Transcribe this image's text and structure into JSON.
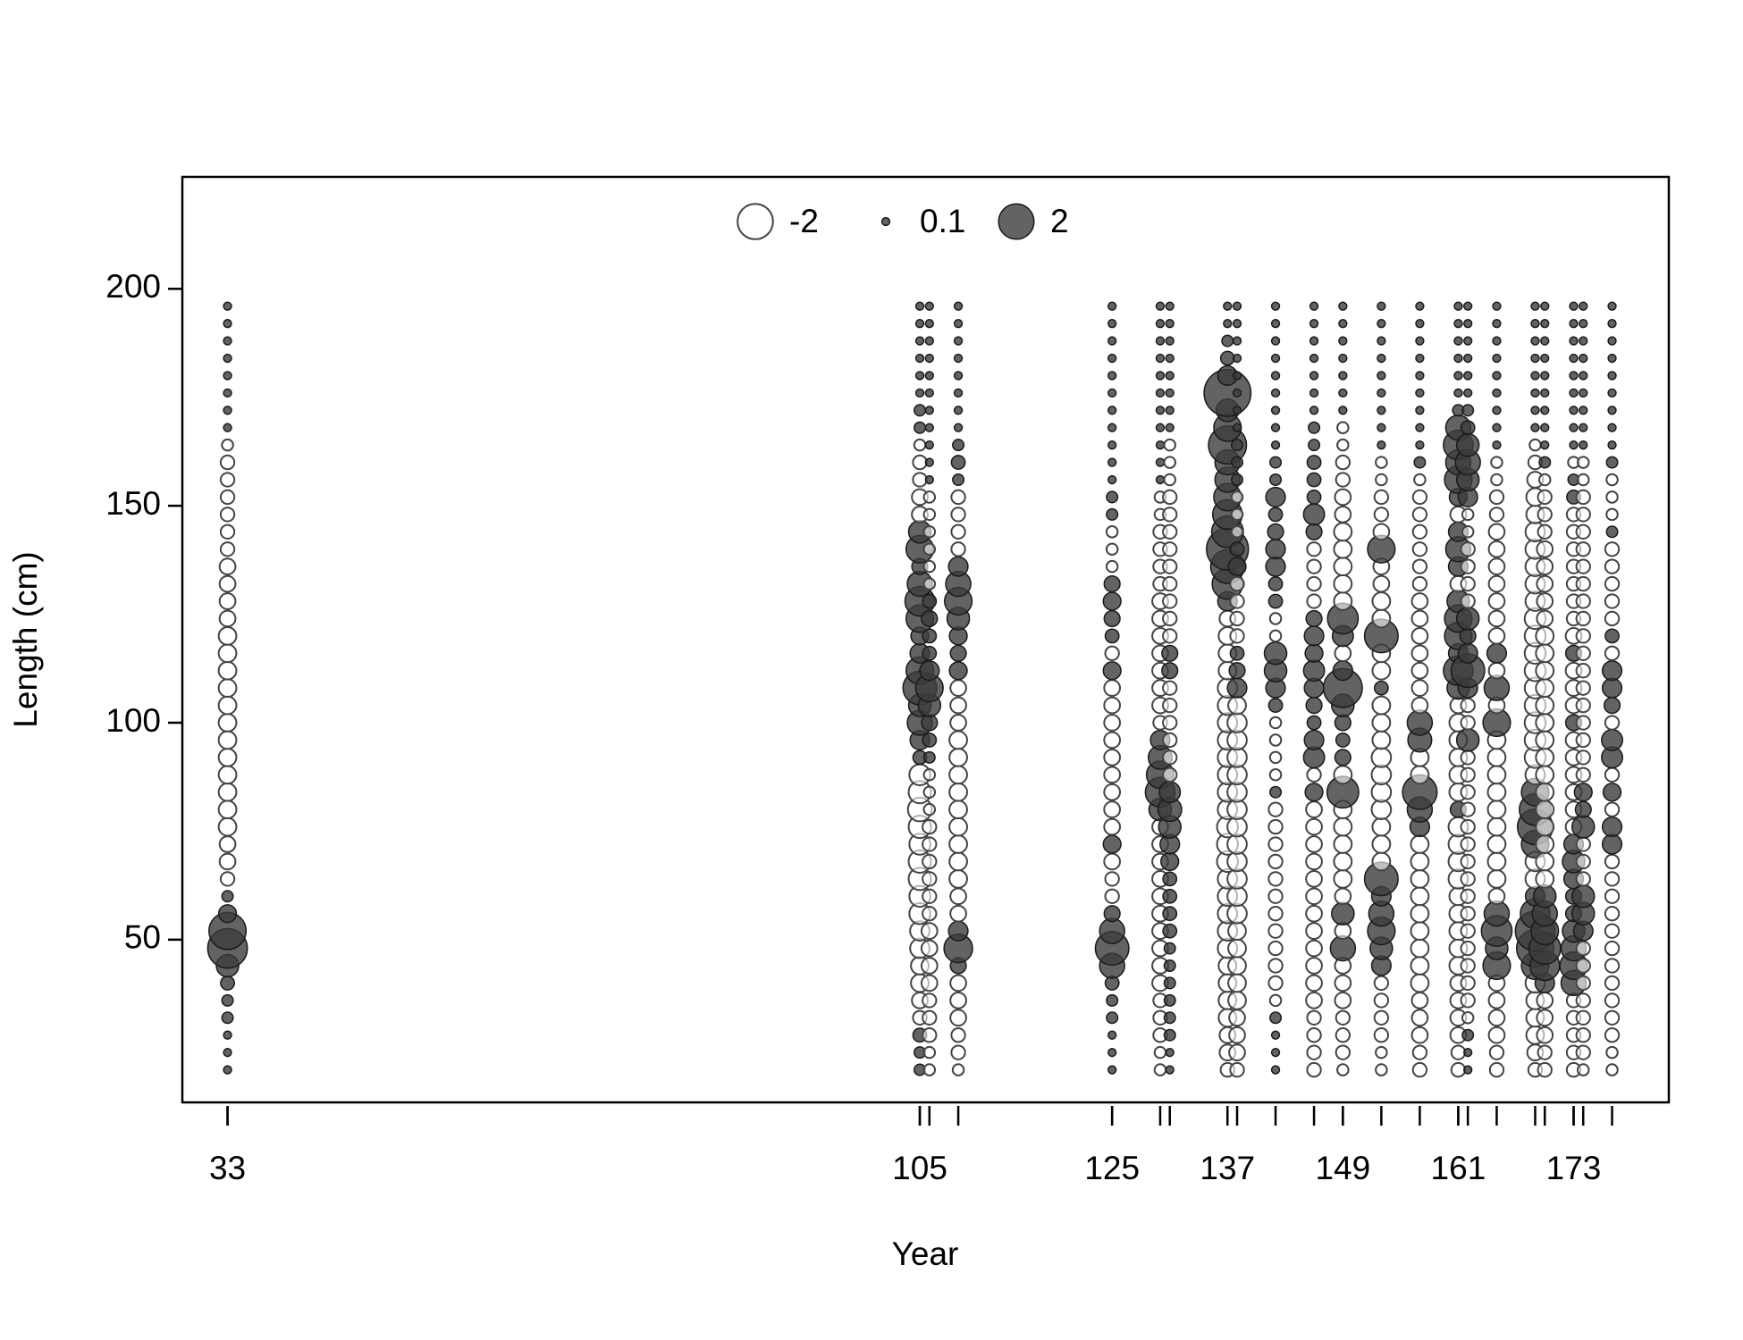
{
  "chart_data": {
    "type": "bubble",
    "xlabel": "Year",
    "ylabel": "Length (cm)",
    "xlim": [
      28.3,
      182.9
    ],
    "ylim": [
      12.5,
      225.8
    ],
    "xticks": [
      33,
      105,
      125,
      137,
      149,
      161,
      173
    ],
    "yticks": [
      50,
      100,
      150,
      200
    ],
    "positive_color": "#3c3c3c",
    "negative_color": "#ffffff",
    "legend": {
      "position": "top",
      "values": [
        -2,
        0.1,
        2
      ]
    },
    "years": [
      33,
      105,
      106,
      109,
      125,
      130,
      131,
      137,
      138,
      142,
      146,
      149,
      153,
      157,
      161,
      162,
      165,
      169,
      170,
      173,
      174,
      177
    ],
    "lengths": [
      20,
      24,
      28,
      32,
      36,
      40,
      44,
      48,
      52,
      56,
      60,
      64,
      68,
      72,
      76,
      80,
      84,
      88,
      92,
      96,
      100,
      104,
      108,
      112,
      116,
      120,
      124,
      128,
      132,
      136,
      140,
      144,
      148,
      152,
      156,
      160,
      164,
      168,
      172,
      176,
      180,
      184,
      188,
      192,
      196
    ],
    "residuals": [
      [
        0.1,
        0.1,
        0.1,
        0.2,
        0.2,
        0.3,
        0.8,
        2.5,
        2.2,
        0.5,
        0.2,
        -0.3,
        -0.4,
        -0.4,
        -0.5,
        -0.5,
        -0.5,
        -0.5,
        -0.5,
        -0.5,
        -0.5,
        -0.5,
        -0.5,
        -0.5,
        -0.5,
        -0.5,
        -0.4,
        -0.4,
        -0.4,
        -0.4,
        -0.3,
        -0.3,
        -0.3,
        -0.3,
        -0.3,
        -0.3,
        -0.2,
        0.1,
        0.1,
        0.1,
        0.1,
        0.1,
        0.1,
        0.1,
        0.1
      ],
      [
        0.2,
        0.2,
        0.3,
        -0.3,
        -0.4,
        -0.5,
        -0.5,
        -0.6,
        -0.6,
        -0.7,
        -0.7,
        -0.8,
        -0.8,
        -0.7,
        -0.8,
        -0.9,
        -0.8,
        -0.7,
        0.3,
        0.6,
        1.0,
        0.8,
        1.8,
        1.2,
        0.6,
        0.5,
        1.2,
        1.4,
        1.0,
        0.4,
        1.2,
        0.8,
        -0.4,
        -0.4,
        -0.3,
        -0.3,
        -0.2,
        0.2,
        0.2,
        0.1,
        0.1,
        0.1,
        0.1,
        0.1,
        0.1
      ],
      [
        -0.2,
        -0.2,
        -0.3,
        -0.3,
        -0.3,
        -0.4,
        -0.4,
        -0.4,
        -0.4,
        -0.3,
        -0.3,
        -0.3,
        -0.3,
        -0.3,
        -0.3,
        -0.2,
        -0.2,
        -0.2,
        0.2,
        0.3,
        0.4,
        0.8,
        1.2,
        0.6,
        0.3,
        0.3,
        0.4,
        0.3,
        -0.2,
        -0.2,
        -0.2,
        -0.2,
        -0.2,
        -0.2,
        0.1,
        0.1,
        0.1,
        0.1,
        0.1,
        0.1,
        0.1,
        0.1,
        0.1,
        0.1,
        0.1
      ],
      [
        -0.2,
        -0.3,
        -0.3,
        -0.4,
        -0.4,
        -0.4,
        0.4,
        1.3,
        0.6,
        -0.4,
        -0.4,
        -0.5,
        -0.5,
        -0.5,
        -0.5,
        -0.5,
        -0.5,
        -0.5,
        -0.5,
        -0.5,
        -0.4,
        -0.4,
        -0.4,
        0.5,
        0.4,
        0.5,
        0.8,
        1.2,
        1.0,
        0.6,
        -0.3,
        -0.3,
        -0.3,
        -0.3,
        0.2,
        0.3,
        0.2,
        0.1,
        0.1,
        0.1,
        0.1,
        0.1,
        0.1,
        0.1,
        0.1
      ],
      [
        0.1,
        0.1,
        0.1,
        0.2,
        0.2,
        0.3,
        1.0,
        1.8,
        1.0,
        0.4,
        -0.3,
        -0.3,
        -0.4,
        0.5,
        -0.4,
        -0.4,
        -0.4,
        -0.4,
        -0.4,
        -0.4,
        -0.4,
        -0.4,
        -0.4,
        0.5,
        -0.3,
        0.3,
        0.4,
        0.5,
        0.4,
        -0.2,
        -0.2,
        -0.2,
        0.2,
        0.2,
        0.1,
        0.1,
        0.1,
        0.1,
        0.1,
        0.1,
        0.1,
        0.1,
        0.1,
        0.1,
        0.1
      ],
      [
        -0.2,
        -0.2,
        -0.3,
        -0.3,
        -0.3,
        -0.4,
        -0.4,
        -0.4,
        -0.4,
        -0.4,
        -0.4,
        -0.4,
        -0.4,
        -0.4,
        -0.4,
        0.8,
        1.4,
        1.2,
        0.9,
        0.6,
        -0.3,
        -0.4,
        -0.4,
        -0.4,
        -0.4,
        -0.4,
        -0.4,
        -0.4,
        -0.3,
        -0.3,
        -0.3,
        -0.3,
        -0.2,
        -0.2,
        0.1,
        0.1,
        0.1,
        0.1,
        0.1,
        0.1,
        0.1,
        0.1,
        0.1,
        0.1,
        0.1
      ],
      [
        0.1,
        0.1,
        0.2,
        0.2,
        0.2,
        0.2,
        0.2,
        0.2,
        0.3,
        0.3,
        0.3,
        0.3,
        0.5,
        0.6,
        0.8,
        0.9,
        0.7,
        -0.3,
        -0.3,
        -0.3,
        -0.3,
        -0.3,
        -0.3,
        0.4,
        0.4,
        -0.3,
        -0.3,
        -0.3,
        -0.3,
        -0.3,
        -0.3,
        -0.3,
        -0.3,
        -0.3,
        -0.2,
        -0.2,
        -0.2,
        0.1,
        0.1,
        0.1,
        0.1,
        0.1,
        0.1,
        0.1,
        0.1
      ],
      [
        -0.3,
        -0.4,
        -0.4,
        -0.5,
        -0.5,
        -0.5,
        -0.5,
        -0.6,
        -0.6,
        -0.6,
        -0.6,
        -0.6,
        -0.7,
        -0.7,
        -0.7,
        -0.6,
        -0.6,
        -0.6,
        -0.6,
        -0.6,
        -0.6,
        -0.6,
        -0.6,
        -0.5,
        -0.5,
        -0.5,
        -0.4,
        0.6,
        1.5,
        1.8,
        2.8,
        1.6,
        1.4,
        1.2,
        1.0,
        1.0,
        2.3,
        1.2,
        0.8,
        3.5,
        0.6,
        0.3,
        0.2,
        0.1,
        0.1
      ],
      [
        -0.3,
        -0.4,
        -0.4,
        -0.4,
        -0.5,
        -0.5,
        -0.5,
        -0.5,
        -0.5,
        -0.6,
        -0.6,
        -0.6,
        -0.6,
        -0.6,
        -0.6,
        -0.6,
        -0.6,
        -0.6,
        -0.6,
        -0.6,
        -0.6,
        -0.5,
        0.6,
        0.4,
        0.3,
        -0.3,
        -0.3,
        -0.3,
        -0.3,
        0.5,
        0.3,
        -0.2,
        -0.2,
        -0.2,
        0.2,
        0.2,
        0.2,
        0.1,
        0.1,
        0.1,
        0.1,
        0.1,
        0.1,
        0.1,
        0.1
      ],
      [
        0.1,
        0.1,
        0.1,
        0.2,
        -0.2,
        -0.3,
        -0.3,
        -0.3,
        -0.3,
        -0.3,
        -0.3,
        -0.3,
        -0.3,
        -0.3,
        -0.3,
        -0.3,
        0.2,
        -0.2,
        -0.2,
        -0.2,
        -0.2,
        0.3,
        0.6,
        0.8,
        0.8,
        -0.2,
        -0.2,
        0.3,
        0.3,
        0.6,
        0.6,
        0.4,
        0.3,
        0.6,
        0.2,
        0.2,
        0.1,
        0.1,
        0.1,
        0.1,
        0.1,
        0.1,
        0.1,
        0.1,
        0.1
      ],
      [
        -0.3,
        -0.3,
        -0.3,
        -0.3,
        -0.4,
        -0.4,
        -0.4,
        -0.4,
        -0.4,
        -0.4,
        -0.4,
        -0.4,
        -0.4,
        -0.4,
        -0.4,
        -0.4,
        0.5,
        -0.3,
        0.7,
        0.6,
        0.3,
        0.4,
        0.6,
        0.7,
        0.5,
        0.6,
        0.4,
        -0.3,
        -0.3,
        -0.3,
        -0.3,
        0.4,
        0.7,
        0.3,
        0.3,
        0.3,
        0.2,
        0.2,
        0.1,
        0.1,
        0.1,
        0.1,
        0.1,
        0.1,
        0.1
      ],
      [
        -0.2,
        -0.3,
        -0.3,
        -0.3,
        -0.4,
        -0.4,
        -0.4,
        1.0,
        -0.4,
        0.8,
        -0.4,
        -0.5,
        -0.5,
        -0.5,
        -0.5,
        -0.5,
        1.6,
        -0.5,
        0.4,
        0.3,
        0.4,
        0.8,
        2.4,
        0.6,
        -0.4,
        0.7,
        1.5,
        -0.5,
        -0.5,
        -0.5,
        -0.5,
        -0.5,
        -0.4,
        -0.4,
        -0.3,
        -0.3,
        -0.2,
        -0.2,
        0.1,
        0.1,
        0.1,
        0.1,
        0.1,
        0.1,
        0.1
      ],
      [
        -0.2,
        -0.2,
        -0.3,
        -0.3,
        -0.3,
        -0.3,
        0.6,
        0.8,
        1.2,
        1.0,
        0.6,
        1.8,
        -0.5,
        -0.5,
        -0.5,
        -0.6,
        -0.6,
        -0.6,
        -0.6,
        -0.5,
        -0.5,
        -0.5,
        0.3,
        -0.5,
        -0.5,
        1.8,
        -0.5,
        -0.5,
        -0.4,
        -0.4,
        1.2,
        -0.4,
        -0.3,
        -0.3,
        -0.2,
        -0.2,
        0.1,
        0.1,
        0.1,
        0.1,
        0.1,
        0.1,
        0.1,
        0.1,
        0.1
      ],
      [
        -0.3,
        -0.3,
        -0.4,
        -0.4,
        -0.4,
        -0.5,
        -0.5,
        -0.5,
        -0.5,
        -0.5,
        -0.5,
        -0.5,
        -0.5,
        -0.5,
        0.6,
        1.0,
        1.9,
        -0.5,
        -0.5,
        0.9,
        1.0,
        -0.4,
        -0.4,
        -0.4,
        -0.4,
        -0.4,
        -0.4,
        -0.4,
        -0.3,
        -0.3,
        -0.3,
        -0.3,
        -0.3,
        -0.3,
        -0.2,
        0.2,
        0.1,
        0.1,
        0.1,
        0.1,
        0.1,
        0.1,
        0.1,
        0.1,
        0.1
      ],
      [
        -0.3,
        -0.3,
        -0.4,
        -0.4,
        -0.4,
        -0.4,
        -0.5,
        -0.5,
        -0.5,
        -0.5,
        -0.5,
        -0.6,
        -0.6,
        -0.6,
        -0.6,
        0.4,
        -0.5,
        -0.5,
        -0.5,
        -0.5,
        -0.5,
        -0.4,
        0.8,
        1.4,
        0.6,
        1.2,
        1.2,
        0.8,
        -0.4,
        0.6,
        1.0,
        0.6,
        -0.4,
        0.5,
        1.2,
        1.0,
        1.4,
        1.0,
        0.2,
        0.1,
        0.1,
        0.1,
        0.1,
        0.1,
        0.1
      ],
      [
        0.1,
        0.1,
        0.2,
        -0.2,
        -0.3,
        -0.3,
        -0.3,
        -0.3,
        -0.3,
        -0.3,
        -0.3,
        -0.3,
        -0.3,
        -0.3,
        -0.3,
        -0.3,
        -0.3,
        -0.3,
        -0.3,
        0.8,
        -0.3,
        -0.3,
        0.6,
        1.8,
        0.6,
        0.4,
        0.8,
        -0.3,
        -0.3,
        -0.3,
        -0.3,
        -0.2,
        -0.2,
        0.6,
        0.8,
        1.0,
        0.8,
        0.3,
        0.2,
        0.1,
        0.1,
        0.1,
        0.1,
        0.1,
        0.1
      ],
      [
        -0.3,
        -0.3,
        -0.4,
        -0.4,
        -0.4,
        -0.4,
        1.2,
        0.8,
        1.5,
        1.0,
        -0.4,
        -0.5,
        -0.5,
        -0.5,
        -0.5,
        -0.5,
        -0.5,
        -0.5,
        -0.5,
        -0.5,
        1.2,
        -0.4,
        1.0,
        -0.4,
        0.6,
        -0.4,
        -0.4,
        -0.4,
        -0.4,
        -0.4,
        -0.4,
        -0.4,
        -0.3,
        -0.3,
        -0.2,
        -0.2,
        0.1,
        0.1,
        0.1,
        0.1,
        0.1,
        0.1,
        0.1,
        0.1,
        0.1
      ],
      [
        -0.3,
        -0.4,
        -0.5,
        -0.5,
        -0.5,
        -0.6,
        1.2,
        2.2,
        2.5,
        1.4,
        0.6,
        -0.6,
        -0.6,
        1.2,
        2.0,
        1.6,
        1.2,
        -0.6,
        -0.7,
        -0.7,
        -0.7,
        -0.7,
        -0.7,
        -0.7,
        -0.7,
        -0.7,
        -0.7,
        -0.6,
        -0.6,
        -0.6,
        -0.6,
        -0.6,
        -0.5,
        -0.5,
        -0.4,
        -0.3,
        -0.2,
        0.1,
        0.1,
        0.1,
        0.1,
        0.1,
        0.1,
        0.1,
        0.1
      ],
      [
        -0.3,
        -0.3,
        -0.4,
        -0.4,
        -0.4,
        0.6,
        1.4,
        1.6,
        1.2,
        1.0,
        0.8,
        -0.5,
        -0.5,
        -0.5,
        -0.5,
        -0.5,
        -0.5,
        -0.5,
        -0.5,
        -0.5,
        -0.5,
        -0.5,
        -0.5,
        -0.5,
        -0.5,
        -0.5,
        -0.4,
        -0.4,
        -0.4,
        -0.4,
        -0.4,
        -0.3,
        -0.3,
        -0.3,
        -0.2,
        0.2,
        0.1,
        0.1,
        0.1,
        0.1,
        0.1,
        0.1,
        0.1,
        0.1,
        0.1
      ],
      [
        -0.3,
        -0.3,
        -0.3,
        -0.3,
        -0.3,
        1.0,
        1.2,
        1.0,
        0.8,
        0.4,
        0.4,
        0.6,
        0.8,
        0.6,
        -0.4,
        -0.4,
        -0.4,
        -0.4,
        -0.4,
        -0.4,
        0.4,
        -0.4,
        -0.4,
        -0.4,
        0.4,
        -0.4,
        -0.3,
        -0.3,
        -0.3,
        -0.3,
        -0.3,
        -0.3,
        -0.3,
        0.3,
        0.2,
        -0.2,
        0.1,
        0.1,
        0.1,
        0.1,
        0.1,
        0.1,
        0.1,
        0.1,
        0.1
      ],
      [
        -0.2,
        -0.3,
        -0.3,
        -0.3,
        -0.3,
        -0.3,
        -0.3,
        -0.3,
        0.6,
        0.8,
        0.8,
        -0.3,
        -0.3,
        -0.3,
        0.8,
        0.4,
        0.5,
        -0.3,
        -0.3,
        -0.3,
        -0.3,
        -0.3,
        -0.3,
        -0.3,
        -0.3,
        -0.3,
        -0.3,
        -0.3,
        -0.3,
        -0.3,
        -0.3,
        -0.3,
        -0.3,
        -0.3,
        -0.2,
        -0.2,
        0.1,
        0.1,
        0.1,
        0.1,
        0.1,
        0.1,
        0.1,
        0.1,
        0.1
      ],
      [
        -0.2,
        -0.2,
        -0.3,
        -0.3,
        -0.3,
        -0.3,
        -0.3,
        -0.3,
        -0.3,
        -0.3,
        -0.3,
        -0.3,
        -0.3,
        0.6,
        0.6,
        -0.3,
        0.5,
        -0.3,
        0.7,
        0.7,
        -0.3,
        0.4,
        0.6,
        0.6,
        -0.3,
        0.3,
        -0.3,
        -0.3,
        -0.3,
        -0.3,
        -0.3,
        0.2,
        -0.2,
        -0.2,
        -0.2,
        0.2,
        0.1,
        0.1,
        0.1,
        0.1,
        0.1,
        0.1,
        0.1,
        0.1,
        0.1
      ]
    ]
  }
}
